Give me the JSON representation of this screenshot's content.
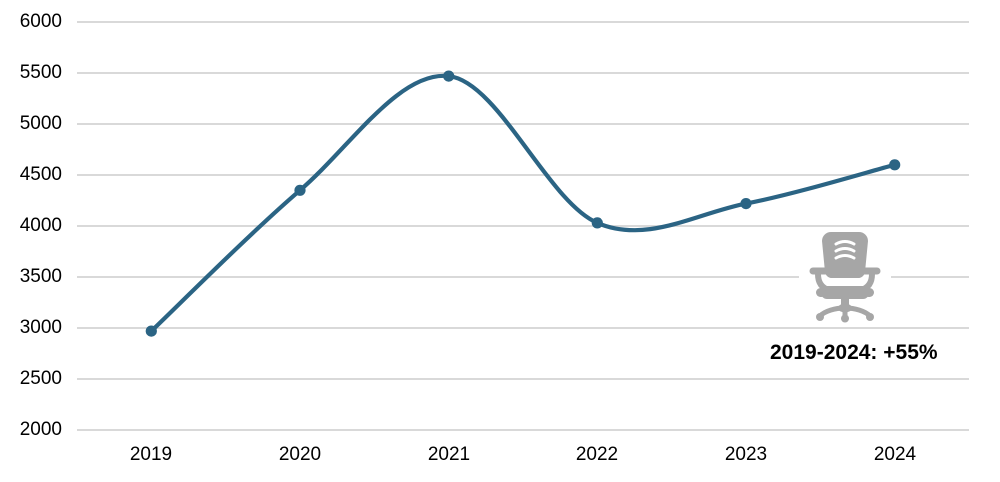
{
  "chart_data": {
    "type": "line",
    "title": "",
    "xlabel": "",
    "ylabel": "",
    "categories": [
      "2019",
      "2020",
      "2021",
      "2022",
      "2023",
      "2024"
    ],
    "series": [
      {
        "name": "value",
        "values": [
          2970,
          4350,
          5470,
          4030,
          4220,
          4600
        ]
      }
    ],
    "ylim": [
      2000,
      6000
    ],
    "yticks": [
      6000,
      5500,
      5000,
      4500,
      4000,
      3500,
      3000,
      2500,
      2000
    ],
    "grid": "horizontal-only",
    "legend_position": "none",
    "smooth_line": true,
    "line_color": "#2b6484",
    "marker_color": "#2b6484",
    "grid_color": "#d9d9d9",
    "text_color": "#000000",
    "annotation": {
      "text": "2019-2024: +55%"
    },
    "icon": {
      "name": "office-chair-icon",
      "color": "#a6a6a6"
    }
  }
}
